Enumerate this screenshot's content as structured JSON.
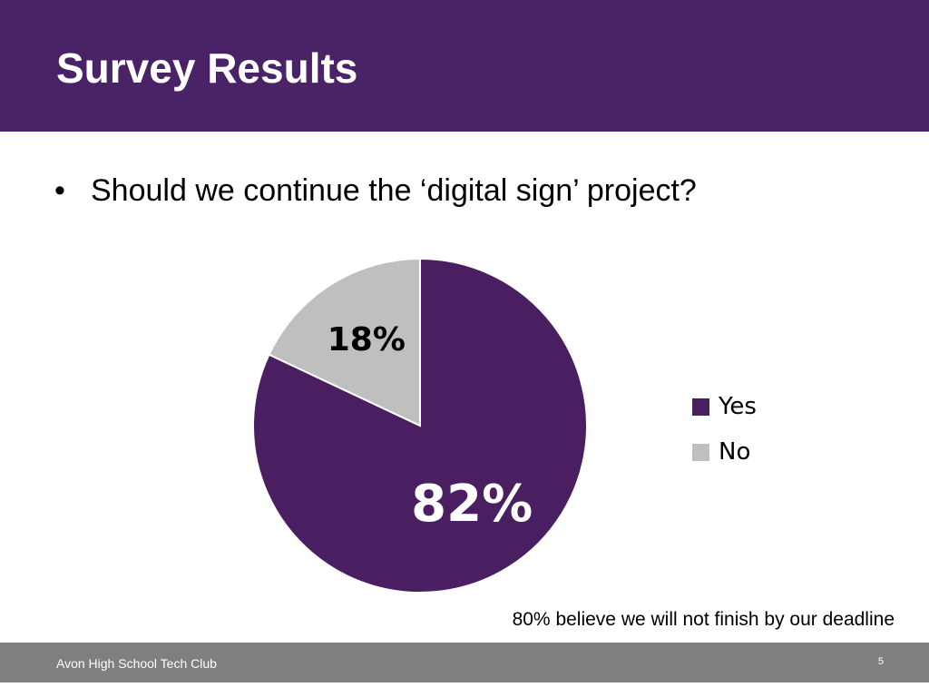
{
  "slide": {
    "title": "Survey Results",
    "bullet_marker": "•",
    "bullet_text": "Should we continue the ‘digital sign’ project?",
    "note": "80% believe we will not finish by our deadline",
    "footer_text": "Avon High School Tech Club",
    "page_number": "5"
  },
  "colors": {
    "title_bar": "#4a2367",
    "footer_bar": "#7f7f7f",
    "yes": "#4a1f62",
    "no": "#bfbfbf"
  },
  "chart_data": {
    "type": "pie",
    "categories": [
      "Yes",
      "No"
    ],
    "values": [
      82,
      18
    ],
    "data_labels": [
      "82%",
      "18%"
    ],
    "legend_position": "right",
    "title": "",
    "start_angle": "12 o'clock",
    "direction": "clockwise"
  }
}
